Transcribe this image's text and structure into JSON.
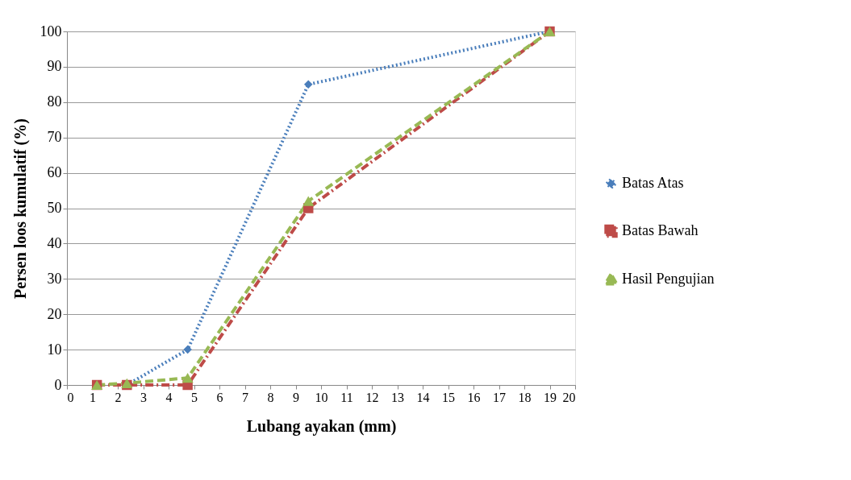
{
  "chart_data": {
    "type": "line",
    "xlabel": "Lubang ayakan (mm)",
    "ylabel": "Persen loos kumulatif  (%)",
    "xlim": [
      0,
      20
    ],
    "xticks": [
      0,
      1,
      2,
      3,
      4,
      5,
      6,
      7,
      8,
      9,
      10,
      11,
      12,
      13,
      14,
      15,
      16,
      17,
      18,
      19,
      20
    ],
    "ylim": [
      0,
      100
    ],
    "yticks": [
      0,
      10,
      20,
      30,
      40,
      50,
      60,
      70,
      80,
      90,
      100
    ],
    "grid": "y",
    "legend": "right",
    "series": [
      {
        "name": "Batas Atas",
        "color": "#4a7ebb",
        "x": [
          2.36,
          4.75,
          9.5,
          19
        ],
        "values": [
          0,
          10,
          85,
          100
        ],
        "marker": "diamond",
        "line_style": "dotted"
      },
      {
        "name": "Batas Bawah",
        "color": "#be4b48",
        "x": [
          1.18,
          2.36,
          4.75,
          9.5,
          19
        ],
        "values": [
          0,
          0,
          0,
          50,
          100
        ],
        "marker": "square",
        "line_style": "dashdot"
      },
      {
        "name": "Hasil Pengujian",
        "color": "#98b954",
        "x": [
          1.18,
          2.36,
          4.75,
          9.5,
          19
        ],
        "values": [
          0,
          0.5,
          2,
          52,
          100
        ],
        "marker": "triangle",
        "line_style": "dashed"
      }
    ]
  }
}
